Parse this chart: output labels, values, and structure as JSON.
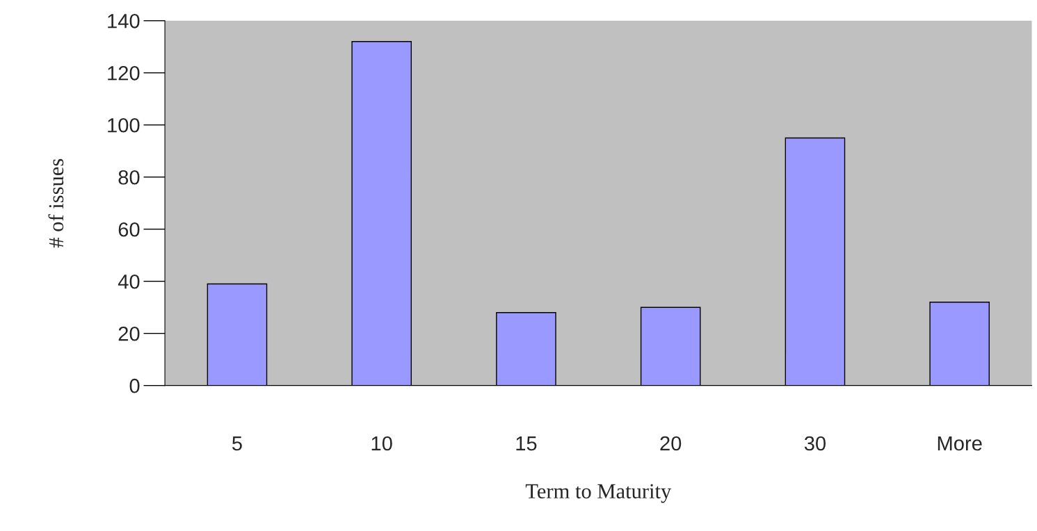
{
  "chart_data": {
    "type": "bar",
    "xlabel": "Term to Maturity",
    "ylabel": "# of issues",
    "categories": [
      "5",
      "10",
      "15",
      "20",
      "30",
      "More"
    ],
    "values": [
      39,
      132,
      28,
      30,
      95,
      32
    ],
    "color": "#9999ff",
    "ylim": [
      0,
      140
    ],
    "yticks": [
      0,
      20,
      40,
      60,
      80,
      100,
      120,
      140
    ],
    "grid": false,
    "legend": false
  }
}
